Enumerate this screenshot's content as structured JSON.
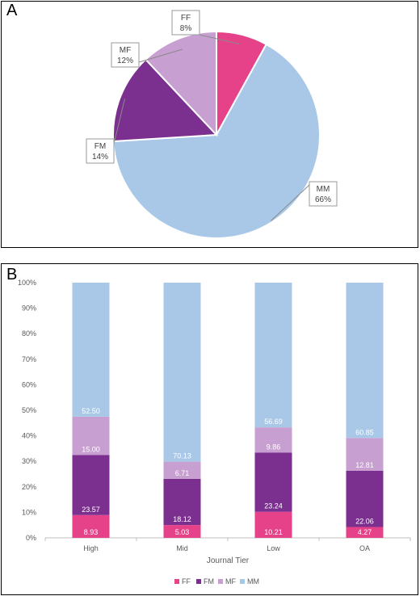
{
  "panel_a": {
    "label": "A"
  },
  "panel_b": {
    "label": "B"
  },
  "colors": {
    "FF": "#e6428a",
    "FM": "#7b2f8e",
    "MF": "#c79fd1",
    "MM": "#a9c8e8"
  },
  "chart_data": [
    {
      "type": "pie",
      "slices": [
        {
          "label": "FF",
          "value": 8,
          "display": "8%"
        },
        {
          "label": "MM",
          "value": 66,
          "display": "66%"
        },
        {
          "label": "FM",
          "value": 14,
          "display": "14%"
        },
        {
          "label": "MF",
          "value": 12,
          "display": "12%"
        }
      ]
    },
    {
      "type": "bar",
      "stacked": true,
      "categories": [
        "High",
        "Mid",
        "Low",
        "OA"
      ],
      "xlabel": "Journal Tier",
      "ylabel": "",
      "ylim": [
        0,
        100
      ],
      "yticks": [
        "0%",
        "10%",
        "20%",
        "30%",
        "40%",
        "50%",
        "60%",
        "70%",
        "80%",
        "90%",
        "100%"
      ],
      "grid": false,
      "legend": "bottom",
      "series": [
        {
          "name": "FF",
          "values": [
            8.93,
            5.03,
            10.21,
            4.27
          ],
          "labels": [
            "8.93",
            "5.03",
            "10.21",
            "4.27"
          ]
        },
        {
          "name": "FM",
          "values": [
            23.57,
            18.12,
            23.24,
            22.06
          ],
          "labels": [
            "23.57",
            "18.12",
            "23.24",
            "22.06"
          ]
        },
        {
          "name": "MF",
          "values": [
            15.0,
            6.71,
            9.86,
            12.81
          ],
          "labels": [
            "15.00",
            "6.71",
            "9.86",
            "12.81"
          ]
        },
        {
          "name": "MM",
          "values": [
            52.5,
            70.13,
            56.69,
            60.85
          ],
          "labels": [
            "52.50",
            "70.13",
            "56.69",
            "60.85"
          ]
        }
      ]
    }
  ]
}
